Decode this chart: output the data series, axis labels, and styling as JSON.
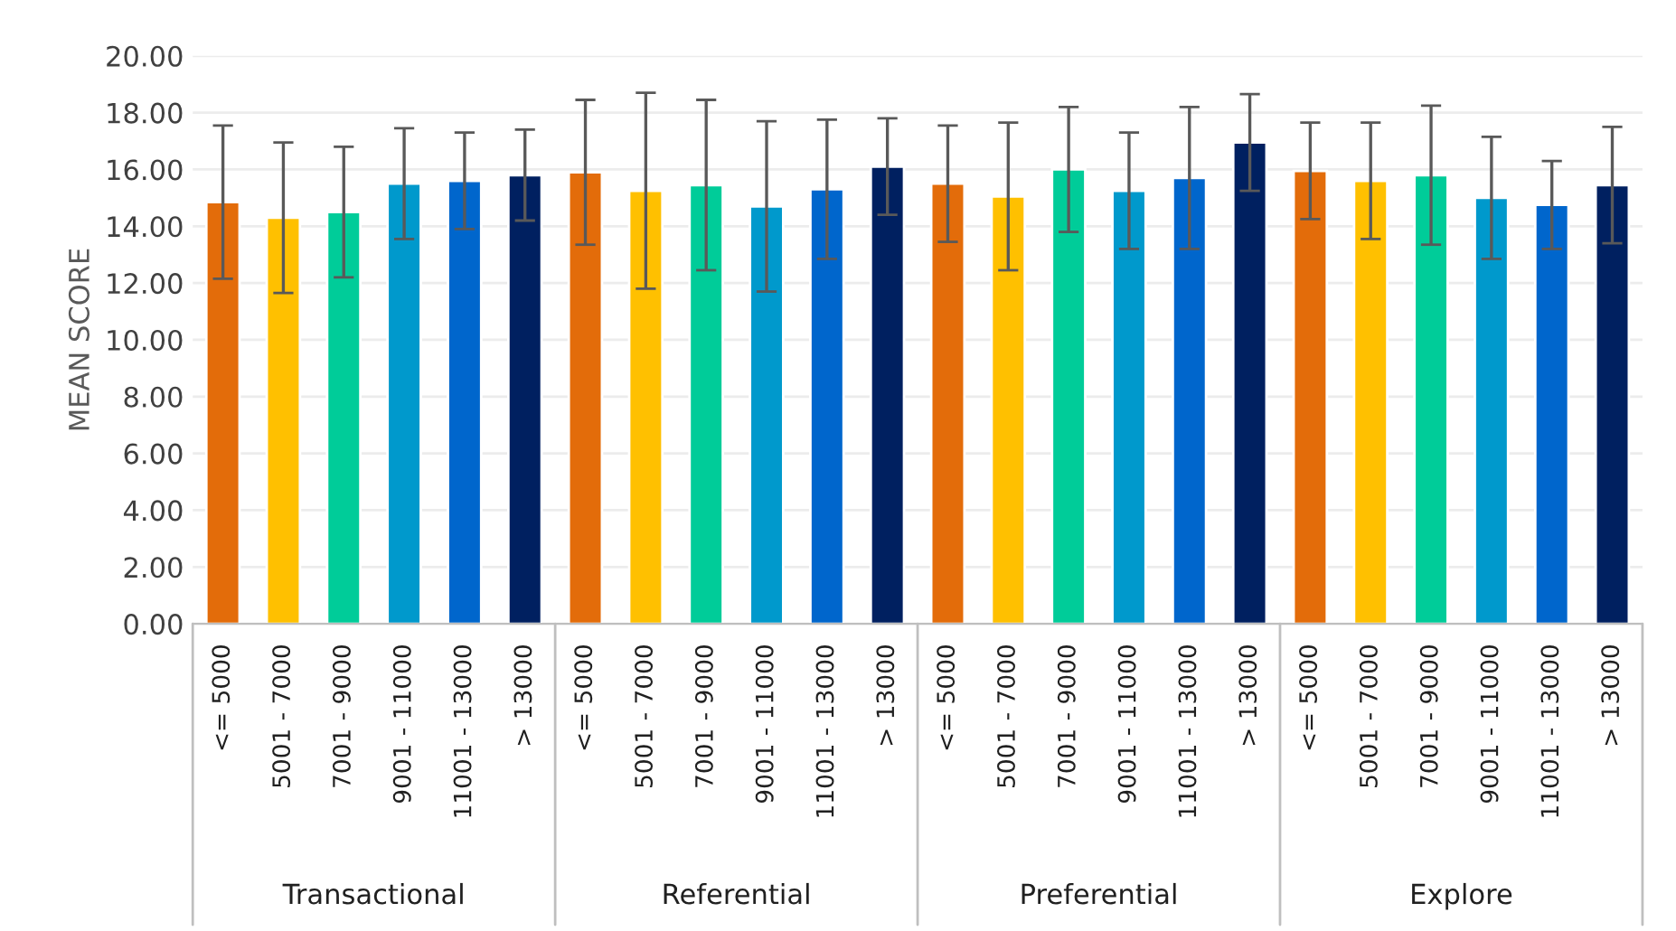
{
  "chart_data": {
    "type": "bar",
    "ylabel": "MEAN SCORE",
    "categories": [
      "<= 5000",
      "5001 - 7000",
      "7001 - 9000",
      "9001 - 11000",
      "11001 - 13000",
      "> 13000",
      "<= 5000",
      "5001 - 7000",
      "7001 - 9000",
      "9001 - 11000",
      "11001 - 13000",
      "> 13000",
      "<= 5000",
      "5001 - 7000",
      "7001 - 9000",
      "9001 - 11000",
      "11001 - 13000",
      "> 13000",
      "<= 5000",
      "5001 - 7000",
      "7001 - 9000",
      "9001 - 11000",
      "11001 - 13000",
      "> 13000"
    ],
    "values": [
      14.85,
      14.3,
      14.5,
      15.5,
      15.6,
      15.8,
      15.9,
      15.25,
      15.45,
      14.7,
      15.3,
      16.1,
      15.5,
      15.05,
      16.0,
      15.25,
      15.7,
      16.95,
      15.95,
      15.6,
      15.8,
      15.0,
      14.75,
      15.45
    ],
    "errors": [
      2.7,
      2.65,
      2.3,
      1.95,
      1.7,
      1.6,
      2.55,
      3.45,
      3.0,
      3.0,
      2.45,
      1.7,
      2.05,
      2.6,
      2.2,
      2.05,
      2.5,
      1.7,
      1.7,
      2.05,
      2.45,
      2.15,
      1.55,
      2.05
    ],
    "colors": [
      "#e36c0a",
      "#ffc000",
      "#00cc99",
      "#0099cc",
      "#0066cc",
      "#002060",
      "#e36c0a",
      "#ffc000",
      "#00cc99",
      "#0099cc",
      "#0066cc",
      "#002060",
      "#e36c0a",
      "#ffc000",
      "#00cc99",
      "#0099cc",
      "#0066cc",
      "#002060",
      "#e36c0a",
      "#ffc000",
      "#00cc99",
      "#0099cc",
      "#0066cc",
      "#002060"
    ],
    "annotations": [
      "Transactional",
      "Referential",
      "Preferential",
      "Explore"
    ],
    "ylim": [
      0,
      20
    ],
    "yticks": [
      {
        "value": 0,
        "label": "0.00"
      },
      {
        "value": 2,
        "label": "2.00"
      },
      {
        "value": 4,
        "label": "4.00"
      },
      {
        "value": 6,
        "label": "6.00"
      },
      {
        "value": 8,
        "label": "8.00"
      },
      {
        "value": 10,
        "label": "10.00"
      },
      {
        "value": 12,
        "label": "12.00"
      },
      {
        "value": 14,
        "label": "14.00"
      },
      {
        "value": 16,
        "label": "16.00"
      },
      {
        "value": 18,
        "label": "18.00"
      },
      {
        "value": 20,
        "label": "20.00"
      }
    ],
    "grid": "y",
    "legend": false
  }
}
